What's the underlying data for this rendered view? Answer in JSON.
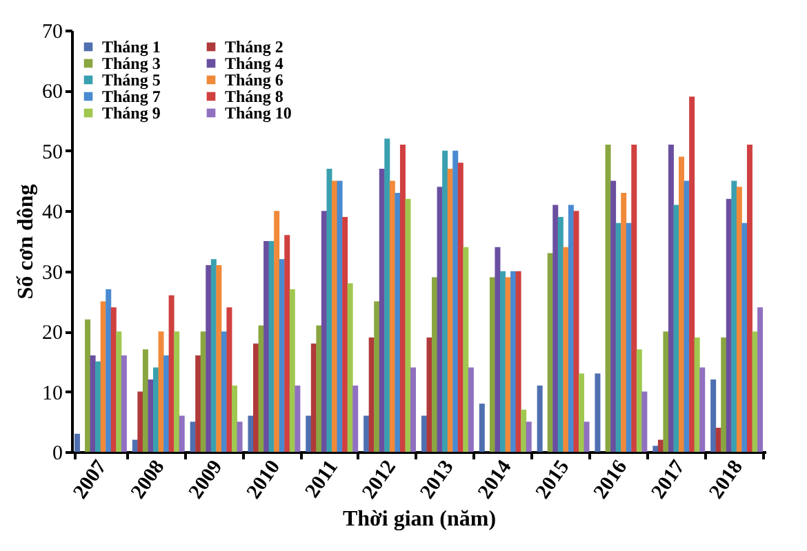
{
  "chart_data": {
    "type": "bar",
    "xlabel": "Thời gian (năm)",
    "ylabel": "Số cơn dông",
    "categories": [
      "2007",
      "2008",
      "2009",
      "2010",
      "2011",
      "2012",
      "2013",
      "2014",
      "2015",
      "2016",
      "2017",
      "2018"
    ],
    "series": [
      {
        "name": "Tháng 1",
        "color": "#4f6fb0",
        "values": [
          3,
          2,
          5,
          6,
          6,
          6,
          6,
          8,
          11,
          13,
          1,
          12
        ]
      },
      {
        "name": "Tháng 2",
        "color": "#b03a3a",
        "values": [
          null,
          10,
          16,
          18,
          18,
          19,
          19,
          null,
          null,
          null,
          2,
          4
        ]
      },
      {
        "name": "Tháng 3",
        "color": "#8aa640",
        "values": [
          22,
          17,
          20,
          21,
          21,
          25,
          29,
          29,
          33,
          51,
          20,
          19
        ]
      },
      {
        "name": "Tháng 4",
        "color": "#6a4fa0",
        "values": [
          16,
          12,
          31,
          35,
          40,
          47,
          44,
          34,
          41,
          45,
          51,
          42
        ]
      },
      {
        "name": "Tháng 5",
        "color": "#3aa0b0",
        "values": [
          15,
          14,
          32,
          35,
          47,
          52,
          50,
          30,
          39,
          38,
          41,
          45
        ]
      },
      {
        "name": "Tháng 6",
        "color": "#f08a3a",
        "values": [
          25,
          20,
          31,
          40,
          45,
          45,
          47,
          29,
          34,
          43,
          49,
          44
        ]
      },
      {
        "name": "Tháng 7",
        "color": "#4a8ad0",
        "values": [
          27,
          16,
          20,
          32,
          45,
          43,
          50,
          30,
          41,
          38,
          45,
          38
        ]
      },
      {
        "name": "Tháng 8",
        "color": "#d04040",
        "values": [
          24,
          26,
          24,
          36,
          39,
          51,
          48,
          30,
          40,
          51,
          59,
          51
        ]
      },
      {
        "name": "Tháng 9",
        "color": "#a0c850",
        "values": [
          20,
          20,
          11,
          27,
          28,
          42,
          34,
          7,
          13,
          17,
          19,
          20
        ]
      },
      {
        "name": "Tháng 10",
        "color": "#9070c0",
        "values": [
          16,
          6,
          5,
          11,
          11,
          14,
          14,
          5,
          5,
          10,
          14,
          24
        ]
      }
    ],
    "ylim": [
      0,
      70
    ],
    "yticks": [
      0,
      10,
      20,
      30,
      40,
      50,
      60,
      70
    ],
    "grid": false,
    "legend": "top left"
  }
}
